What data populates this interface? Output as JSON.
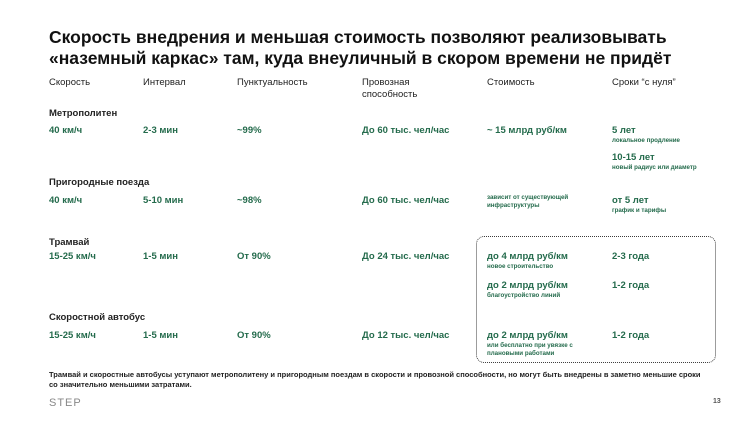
{
  "title": "Скорость внедрения и меньшая стоимость позволяют реализовывать «наземный каркас» там, куда внеуличный в скором времени не придёт",
  "headers": [
    "Скорость",
    "Интервал",
    "Пунктуальность",
    "Провозная способность",
    "Стоимость",
    "Сроки “с нуля”"
  ],
  "metro": {
    "name": "Метрополитен",
    "speed": "40 км/ч",
    "interval": "2-3 мин",
    "punctuality": "~99%",
    "capacity": "До 60 тыс. чел/час",
    "cost": "~ 15 млрд руб/км",
    "term1": "5 лет",
    "term1_note": "локальное продление",
    "term2": "10-15 лет",
    "term2_note": "новый радиус или диаметр"
  },
  "suburban": {
    "name": "Пригородные поезда",
    "speed": "40 км/ч",
    "interval": "5-10 мин",
    "punctuality": "~98%",
    "capacity": "До 60 тыс. чел/час",
    "cost_note": "зависит от существующей инфраструктуры",
    "term": "от 5 лет",
    "term_note": "график и тарифы"
  },
  "tram": {
    "name": "Трамвай",
    "speed": "15-25 км/ч",
    "interval": "1-5 мин",
    "punctuality": "От 90%",
    "capacity": "До 24 тыс. чел/час",
    "cost1": "до 4 млрд руб/км",
    "cost1_note": "новое строительство",
    "term1": "2-3 года",
    "cost2": "до 2 млрд руб/км",
    "cost2_note": "благоустройство линий",
    "term2": "1-2 года"
  },
  "bus": {
    "name": "Скоростной автобус",
    "speed": "15-25 км/ч",
    "interval": "1-5 мин",
    "punctuality": "От 90%",
    "capacity": "До 12 тыс. чел/час",
    "cost": "до 2 млрд руб/км",
    "cost_note": "или бесплатно при увязке с плановыми работами",
    "term": "1-2 года"
  },
  "footnote": "Трамвай и скоростные автобусы уступают метрополитену и пригородным поездам в скорости и провозной способности, но могут быть внедрены в заметно меньшие сроки со значительно меньшими затратами.",
  "logo": "STEP",
  "page_number": "13"
}
